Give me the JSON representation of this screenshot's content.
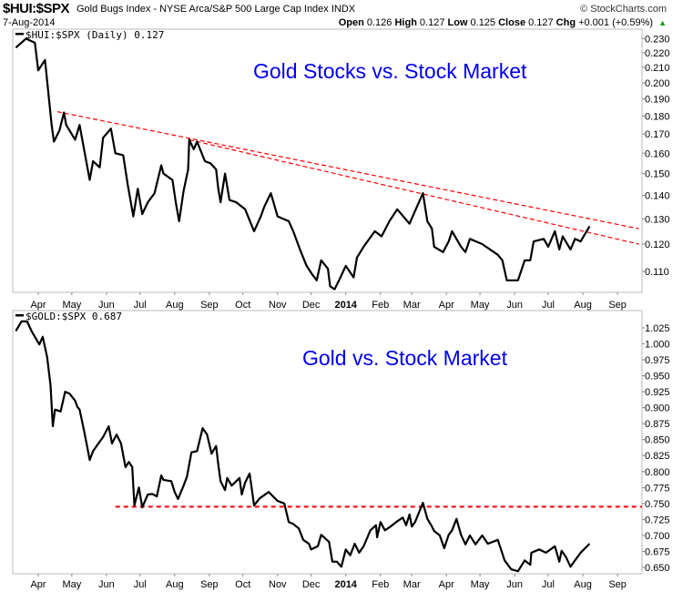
{
  "header": {
    "symbol": "$HUI:$SPX",
    "description": "Gold Bugs Index - NYSE Arca/S&P 500 Large Cap Index  INDX",
    "date": "7-Aug-2014",
    "brand": "© StockCharts.com",
    "open_label": "Open",
    "open": "0.126",
    "high_label": "High",
    "high": "0.127",
    "low_label": "Low",
    "low": "0.125",
    "close_label": "Close",
    "close": "0.127",
    "chg_label": "Chg",
    "chg": "+0.001 (+0.59%)",
    "chg_icon": "up-triangle-icon",
    "up_color": "#00a000"
  },
  "chart_data": [
    {
      "type": "line",
      "legend": "$HUI:$SPX (Daily) 0.127",
      "annotation": "Gold Stocks vs. Stock Market",
      "annotation_color": "#0000ee",
      "yscale": "log",
      "ylim": [
        0.103,
        0.237
      ],
      "xlim": [
        "2013-03-12",
        "2014-09-30"
      ],
      "grid": false,
      "yticks": [
        "0.230",
        "0.220",
        "0.210",
        "0.200",
        "0.190",
        "0.180",
        "0.170",
        "0.160",
        "0.150",
        "0.140",
        "0.130",
        "0.120",
        "0.110"
      ],
      "line_color": "#000000",
      "series": [
        {
          "x": [
            "2013-03-12",
            "2013-03-21",
            "2013-03-29",
            "2013-04-01",
            "2013-04-07",
            "2013-04-09",
            "2013-04-13",
            "2013-04-15",
            "2013-04-20",
            "2013-04-24",
            "2013-04-26",
            "2013-05-04",
            "2013-05-08",
            "2013-05-12",
            "2013-05-17",
            "2013-05-20",
            "2013-05-26",
            "2013-05-29",
            "2013-06-05",
            "2013-06-09",
            "2013-06-16",
            "2013-06-20",
            "2013-06-25",
            "2013-06-29",
            "2013-07-03",
            "2013-07-08",
            "2013-07-14",
            "2013-07-20",
            "2013-07-22",
            "2013-07-30",
            "2013-08-02",
            "2013-08-05",
            "2013-08-09",
            "2013-08-13",
            "2013-08-14",
            "2013-08-18",
            "2013-08-21",
            "2013-08-28",
            "2013-09-02",
            "2013-09-07",
            "2013-09-09",
            "2013-09-11",
            "2013-09-15",
            "2013-09-19",
            "2013-09-25",
            "2013-10-03",
            "2013-10-11",
            "2013-10-17",
            "2013-10-20",
            "2013-10-26",
            "2013-11-01",
            "2013-11-11",
            "2013-11-15",
            "2013-11-21",
            "2013-11-27",
            "2013-12-02",
            "2013-12-06",
            "2013-12-10",
            "2013-12-16",
            "2013-12-18",
            "2013-12-22",
            "2013-12-26",
            "2014-01-01",
            "2014-01-08",
            "2014-01-11",
            "2014-01-17",
            "2014-01-27",
            "2014-02-02",
            "2014-02-09",
            "2014-02-16",
            "2014-02-27",
            "2014-03-11",
            "2014-03-15",
            "2014-03-19",
            "2014-03-21",
            "2014-03-29",
            "2014-04-03",
            "2014-04-06",
            "2014-04-14",
            "2014-04-18",
            "2014-04-22",
            "2014-05-03",
            "2014-05-17",
            "2014-05-21",
            "2014-05-25",
            "2014-05-30",
            "2014-06-04",
            "2014-06-10",
            "2014-06-15",
            "2014-06-18",
            "2014-06-27",
            "2014-07-01",
            "2014-07-07",
            "2014-07-11",
            "2014-07-14",
            "2014-07-21",
            "2014-07-25",
            "2014-07-30",
            "2014-08-07"
          ],
          "y": [
            0.2235,
            0.23,
            0.227,
            0.208,
            0.215,
            0.201,
            0.175,
            0.166,
            0.172,
            0.182,
            0.175,
            0.167,
            0.175,
            0.162,
            0.147,
            0.156,
            0.153,
            0.168,
            0.173,
            0.16,
            0.159,
            0.145,
            0.131,
            0.143,
            0.132,
            0.137,
            0.141,
            0.154,
            0.15,
            0.147,
            0.137,
            0.129,
            0.142,
            0.152,
            0.167,
            0.162,
            0.166,
            0.156,
            0.155,
            0.152,
            0.143,
            0.137,
            0.15,
            0.138,
            0.137,
            0.134,
            0.125,
            0.131,
            0.135,
            0.141,
            0.131,
            0.129,
            0.125,
            0.118,
            0.112,
            0.109,
            0.107,
            0.114,
            0.111,
            0.105,
            0.104,
            0.107,
            0.112,
            0.108,
            0.115,
            0.119,
            0.125,
            0.123,
            0.129,
            0.134,
            0.128,
            0.141,
            0.129,
            0.126,
            0.119,
            0.117,
            0.121,
            0.125,
            0.119,
            0.117,
            0.122,
            0.12,
            0.116,
            0.114,
            0.107,
            0.107,
            0.107,
            0.114,
            0.114,
            0.121,
            0.122,
            0.119,
            0.125,
            0.118,
            0.123,
            0.118,
            0.122,
            0.121,
            0.127
          ]
        }
      ],
      "trendlines": [
        {
          "color": "#ff0000",
          "style": "dashed",
          "from": [
            "2013-04-18",
            0.1825
          ],
          "to": [
            "2014-09-20",
            0.126
          ]
        },
        {
          "color": "#ff0000",
          "style": "dashed",
          "from": [
            "2013-08-14",
            0.167
          ],
          "to": [
            "2014-09-20",
            0.12
          ]
        }
      ]
    },
    {
      "type": "line",
      "legend": "$GOLD:$SPX 0.687",
      "annotation": "Gold vs. Stock Market",
      "annotation_color": "#0000ee",
      "yscale": "linear",
      "ylim": [
        0.64,
        1.052
      ],
      "xlim": [
        "2013-03-12",
        "2014-09-30"
      ],
      "grid": false,
      "yticks": [
        "1.025",
        "1.000",
        "0.975",
        "0.950",
        "0.925",
        "0.900",
        "0.875",
        "0.850",
        "0.825",
        "0.800",
        "0.775",
        "0.750",
        "0.725",
        "0.700",
        "0.675",
        "0.650"
      ],
      "line_color": "#000000",
      "series": [
        {
          "x": [
            "2013-03-12",
            "2013-03-17",
            "2013-03-22",
            "2013-03-26",
            "2013-04-02",
            "2013-04-05",
            "2013-04-09",
            "2013-04-12",
            "2013-04-14",
            "2013-04-16",
            "2013-04-21",
            "2013-04-25",
            "2013-04-29",
            "2013-05-04",
            "2013-05-06",
            "2013-05-08",
            "2013-05-12",
            "2013-05-15",
            "2013-05-17",
            "2013-05-20",
            "2013-05-24",
            "2013-05-29",
            "2013-06-03",
            "2013-06-06",
            "2013-06-10",
            "2013-06-14",
            "2013-06-18",
            "2013-06-21",
            "2013-06-24",
            "2013-06-26",
            "2013-06-30",
            "2013-07-03",
            "2013-07-08",
            "2013-07-12",
            "2013-07-16",
            "2013-07-20",
            "2013-07-22",
            "2013-07-29",
            "2013-08-01",
            "2013-08-04",
            "2013-08-09",
            "2013-08-12",
            "2013-08-16",
            "2013-08-21",
            "2013-08-26",
            "2013-08-30",
            "2013-09-03",
            "2013-09-07",
            "2013-09-09",
            "2013-09-11",
            "2013-09-15",
            "2013-09-17",
            "2013-09-21",
            "2013-09-28",
            "2013-09-30",
            "2013-10-03",
            "2013-10-07",
            "2013-10-11",
            "2013-10-16",
            "2013-10-24",
            "2013-11-01",
            "2013-11-07",
            "2013-11-11",
            "2013-11-15",
            "2013-11-20",
            "2013-11-24",
            "2013-11-29",
            "2013-12-01",
            "2013-12-07",
            "2013-12-10",
            "2013-12-17",
            "2013-12-20",
            "2013-12-24",
            "2013-12-28",
            "2014-01-01",
            "2014-01-05",
            "2014-01-09",
            "2014-01-13",
            "2014-01-17",
            "2014-01-23",
            "2014-01-28",
            "2014-01-29",
            "2014-02-01",
            "2014-02-05",
            "2014-02-10",
            "2014-02-15",
            "2014-02-21",
            "2014-02-24",
            "2014-02-27",
            "2014-03-01",
            "2014-03-04",
            "2014-03-11",
            "2014-03-15",
            "2014-03-19",
            "2014-03-21",
            "2014-03-26",
            "2014-03-30",
            "2014-04-03",
            "2014-04-06",
            "2014-04-10",
            "2014-04-14",
            "2014-04-18",
            "2014-04-22",
            "2014-04-27",
            "2014-05-03",
            "2014-05-08",
            "2014-05-17",
            "2014-05-23",
            "2014-05-29",
            "2014-06-04",
            "2014-06-10",
            "2014-06-15",
            "2014-06-16",
            "2014-06-23",
            "2014-06-29",
            "2014-07-07",
            "2014-07-11",
            "2014-07-13",
            "2014-07-17",
            "2014-07-21",
            "2014-07-25",
            "2014-07-30",
            "2014-08-07"
          ],
          "y": [
            1.02,
            1.035,
            1.035,
            1.02,
            0.999,
            1.011,
            0.979,
            0.935,
            0.871,
            0.897,
            0.894,
            0.925,
            0.922,
            0.911,
            0.901,
            0.897,
            0.864,
            0.837,
            0.818,
            0.832,
            0.842,
            0.854,
            0.871,
            0.844,
            0.858,
            0.844,
            0.807,
            0.815,
            0.807,
            0.747,
            0.775,
            0.744,
            0.764,
            0.765,
            0.761,
            0.794,
            0.787,
            0.785,
            0.768,
            0.757,
            0.778,
            0.792,
            0.83,
            0.832,
            0.868,
            0.858,
            0.828,
            0.84,
            0.811,
            0.785,
            0.771,
            0.79,
            0.778,
            0.79,
            0.764,
            0.783,
            0.797,
            0.747,
            0.758,
            0.768,
            0.754,
            0.75,
            0.721,
            0.718,
            0.711,
            0.693,
            0.687,
            0.678,
            0.683,
            0.701,
            0.69,
            0.659,
            0.659,
            0.651,
            0.678,
            0.669,
            0.687,
            0.673,
            0.683,
            0.708,
            0.716,
            0.697,
            0.721,
            0.708,
            0.714,
            0.721,
            0.728,
            0.716,
            0.733,
            0.714,
            0.721,
            0.751,
            0.726,
            0.714,
            0.707,
            0.7,
            0.68,
            0.701,
            0.708,
            0.726,
            0.701,
            0.686,
            0.7,
            0.686,
            0.7,
            0.687,
            0.693,
            0.661,
            0.647,
            0.644,
            0.661,
            0.654,
            0.673,
            0.678,
            0.673,
            0.683,
            0.659,
            0.676,
            0.666,
            0.651,
            0.661,
            0.673,
            0.687
          ]
        }
      ],
      "trendlines": [
        {
          "color": "#ff0000",
          "style": "dashed",
          "from": [
            "2013-06-09",
            0.745
          ],
          "to": [
            "2014-09-25",
            0.745
          ]
        }
      ]
    }
  ],
  "xaxis": {
    "ticks": [
      {
        "label": "Apr",
        "date": "2013-04-01"
      },
      {
        "label": "May",
        "date": "2013-05-01"
      },
      {
        "label": "Jun",
        "date": "2013-06-01"
      },
      {
        "label": "Jul",
        "date": "2013-07-01"
      },
      {
        "label": "Aug",
        "date": "2013-08-01"
      },
      {
        "label": "Sep",
        "date": "2013-09-01"
      },
      {
        "label": "Oct",
        "date": "2013-10-01"
      },
      {
        "label": "Nov",
        "date": "2013-11-01"
      },
      {
        "label": "Dec",
        "date": "2013-12-01"
      },
      {
        "label": "2014",
        "date": "2014-01-01",
        "bold": true
      },
      {
        "label": "Feb",
        "date": "2014-02-01"
      },
      {
        "label": "Mar",
        "date": "2014-03-01"
      },
      {
        "label": "Apr",
        "date": "2014-04-01"
      },
      {
        "label": "May",
        "date": "2014-05-01"
      },
      {
        "label": "Jun",
        "date": "2014-06-01"
      },
      {
        "label": "Jul",
        "date": "2014-07-01"
      },
      {
        "label": "Aug",
        "date": "2014-08-01"
      },
      {
        "label": "Sep",
        "date": "2014-09-01"
      }
    ]
  }
}
